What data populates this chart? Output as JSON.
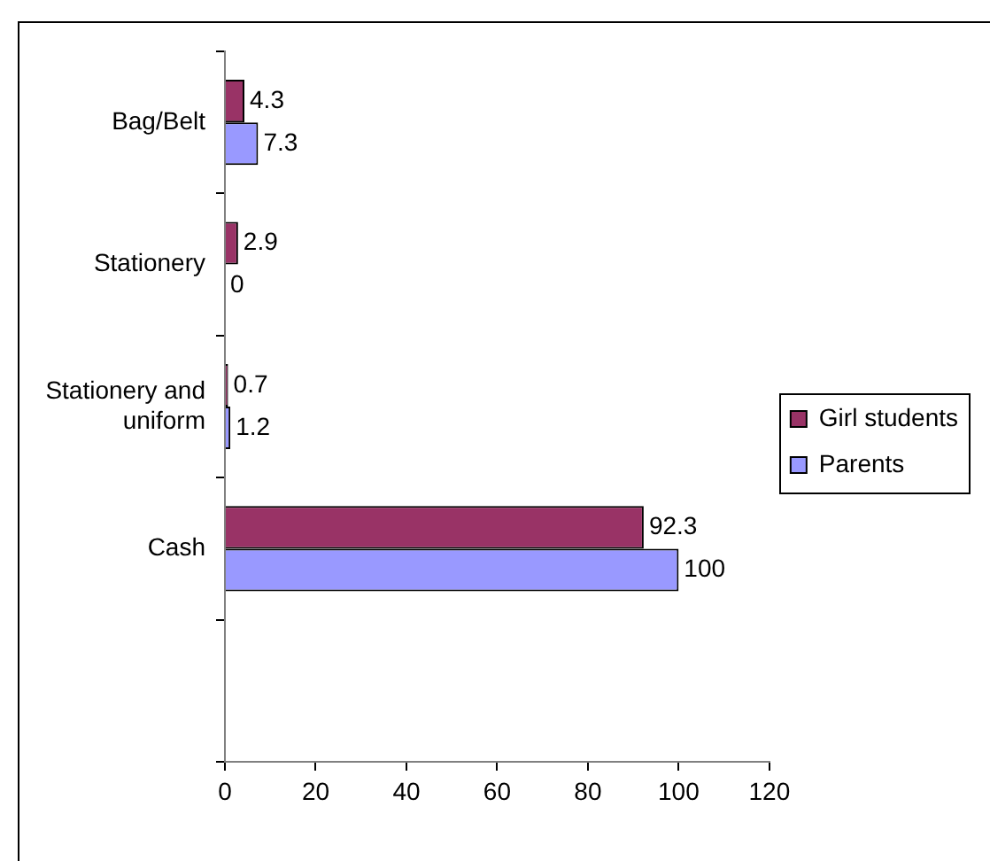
{
  "chart_data": {
    "type": "bar",
    "orientation": "horizontal",
    "categories": [
      "Bag/Belt",
      "Stationery",
      "Stationery and uniform",
      "Cash",
      null
    ],
    "series": [
      {
        "name": "Girl students",
        "color": "#993366",
        "values": [
          4.3,
          2.9,
          0.7,
          92.3,
          null
        ]
      },
      {
        "name": "Parents",
        "color": "#9999ff",
        "values": [
          7.3,
          0,
          1.2,
          100,
          null
        ]
      }
    ],
    "xlim": [
      0,
      120
    ],
    "xticks": [
      0,
      20,
      40,
      60,
      80,
      100,
      120
    ],
    "data_labels": true,
    "legend": "right",
    "grid": false
  }
}
